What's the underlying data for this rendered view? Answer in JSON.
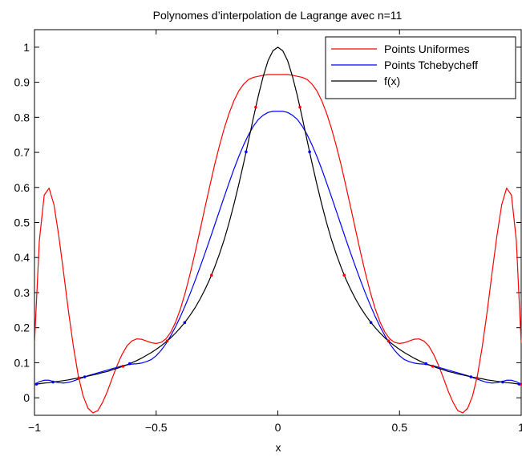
{
  "chart_data": {
    "type": "line",
    "title": "Polynomes d’interpolation de Lagrange avec n=11",
    "xlabel": "x",
    "ylabel": "",
    "xlim": [
      -1,
      1
    ],
    "ylim": [
      -0.05,
      1.05
    ],
    "xticks": [
      -1,
      -0.5,
      0,
      0.5,
      1
    ],
    "xtick_labels": [
      "−1",
      "−0.5",
      "0",
      "0.5",
      "1"
    ],
    "yticks": [
      0,
      0.1,
      0.2,
      0.3,
      0.4,
      0.5,
      0.6,
      0.7,
      0.8,
      0.9,
      1
    ],
    "ytick_labels": [
      "0",
      "0.1",
      "0.2",
      "0.3",
      "0.4",
      "0.5",
      "0.6",
      "0.7",
      "0.8",
      "0.9",
      "1"
    ],
    "grid": false,
    "legend_position": "top-right",
    "series": [
      {
        "name": "Points Uniformes",
        "color": "#ff0000",
        "x": [
          -1,
          -0.98,
          -0.96,
          -0.94,
          -0.92,
          -0.9,
          -0.88,
          -0.86,
          -0.84,
          -0.82,
          -0.8,
          -0.78,
          -0.76,
          -0.74,
          -0.72,
          -0.7,
          -0.68,
          -0.66,
          -0.64,
          -0.62,
          -0.6,
          -0.58,
          -0.56,
          -0.54,
          -0.52,
          -0.5,
          -0.48,
          -0.46,
          -0.44,
          -0.42,
          -0.4,
          -0.38,
          -0.36,
          -0.34,
          -0.32,
          -0.3,
          -0.28,
          -0.26,
          -0.24,
          -0.22,
          -0.2,
          -0.18,
          -0.16,
          -0.14,
          -0.12,
          -0.1,
          -0.08,
          -0.06,
          -0.04,
          -0.02,
          0,
          0.02,
          0.04,
          0.06,
          0.08,
          0.1,
          0.12,
          0.14,
          0.16,
          0.18,
          0.2,
          0.22,
          0.24,
          0.26,
          0.28,
          0.3,
          0.32,
          0.34,
          0.36,
          0.38,
          0.4,
          0.42,
          0.44,
          0.46,
          0.48,
          0.5,
          0.52,
          0.54,
          0.56,
          0.58,
          0.6,
          0.62,
          0.64,
          0.66,
          0.68,
          0.7,
          0.72,
          0.74,
          0.76,
          0.78,
          0.8,
          0.82,
          0.84,
          0.86,
          0.88,
          0.9,
          0.92,
          0.94,
          0.96,
          0.98,
          1
        ],
        "y": [
          0.156,
          0.448,
          0.578,
          0.598,
          0.551,
          0.461,
          0.355,
          0.245,
          0.146,
          0.063,
          0.005,
          -0.03,
          -0.043,
          -0.037,
          -0.013,
          0.019,
          0.057,
          0.093,
          0.124,
          0.148,
          0.162,
          0.168,
          0.167,
          0.162,
          0.157,
          0.155,
          0.158,
          0.168,
          0.187,
          0.216,
          0.254,
          0.301,
          0.355,
          0.414,
          0.477,
          0.541,
          0.603,
          0.664,
          0.719,
          0.769,
          0.812,
          0.848,
          0.876,
          0.895,
          0.908,
          0.914,
          0.917,
          0.92,
          0.922,
          0.922,
          0.922,
          0.922,
          0.922,
          0.92,
          0.917,
          0.914,
          0.908,
          0.895,
          0.876,
          0.848,
          0.812,
          0.769,
          0.719,
          0.664,
          0.603,
          0.541,
          0.477,
          0.414,
          0.355,
          0.301,
          0.254,
          0.216,
          0.187,
          0.168,
          0.158,
          0.155,
          0.157,
          0.162,
          0.167,
          0.168,
          0.162,
          0.148,
          0.124,
          0.093,
          0.057,
          0.019,
          -0.013,
          -0.037,
          -0.043,
          -0.03,
          0.005,
          0.063,
          0.146,
          0.245,
          0.355,
          0.461,
          0.551,
          0.598,
          0.578,
          0.448,
          0.156
        ]
      },
      {
        "name": "Points Tchebycheff",
        "color": "#0000ff",
        "x": [
          -1,
          -0.98,
          -0.96,
          -0.94,
          -0.92,
          -0.9,
          -0.88,
          -0.86,
          -0.84,
          -0.82,
          -0.8,
          -0.78,
          -0.76,
          -0.74,
          -0.72,
          -0.7,
          -0.68,
          -0.66,
          -0.64,
          -0.62,
          -0.6,
          -0.58,
          -0.56,
          -0.54,
          -0.52,
          -0.5,
          -0.48,
          -0.46,
          -0.44,
          -0.42,
          -0.4,
          -0.38,
          -0.36,
          -0.34,
          -0.32,
          -0.3,
          -0.28,
          -0.26,
          -0.24,
          -0.22,
          -0.2,
          -0.18,
          -0.16,
          -0.14,
          -0.12,
          -0.1,
          -0.08,
          -0.06,
          -0.04,
          -0.02,
          0,
          0.02,
          0.04,
          0.06,
          0.08,
          0.1,
          0.12,
          0.14,
          0.16,
          0.18,
          0.2,
          0.22,
          0.24,
          0.26,
          0.28,
          0.3,
          0.32,
          0.34,
          0.36,
          0.38,
          0.4,
          0.42,
          0.44,
          0.46,
          0.48,
          0.5,
          0.52,
          0.54,
          0.56,
          0.58,
          0.6,
          0.62,
          0.64,
          0.66,
          0.68,
          0.7,
          0.72,
          0.74,
          0.76,
          0.78,
          0.8,
          0.82,
          0.84,
          0.86,
          0.88,
          0.9,
          0.92,
          0.94,
          0.96,
          0.98,
          1
        ],
        "y": [
          0.038,
          0.046,
          0.05,
          0.05,
          0.046,
          0.043,
          0.042,
          0.044,
          0.048,
          0.053,
          0.058,
          0.063,
          0.067,
          0.071,
          0.075,
          0.079,
          0.083,
          0.087,
          0.091,
          0.094,
          0.096,
          0.097,
          0.099,
          0.103,
          0.109,
          0.12,
          0.135,
          0.154,
          0.177,
          0.203,
          0.232,
          0.264,
          0.298,
          0.334,
          0.372,
          0.411,
          0.451,
          0.492,
          0.533,
          0.574,
          0.614,
          0.653,
          0.689,
          0.722,
          0.751,
          0.775,
          0.794,
          0.806,
          0.814,
          0.817,
          0.817,
          0.817,
          0.814,
          0.806,
          0.794,
          0.775,
          0.751,
          0.722,
          0.689,
          0.653,
          0.614,
          0.574,
          0.533,
          0.492,
          0.451,
          0.411,
          0.372,
          0.334,
          0.298,
          0.264,
          0.232,
          0.203,
          0.177,
          0.154,
          0.135,
          0.12,
          0.109,
          0.103,
          0.099,
          0.097,
          0.096,
          0.094,
          0.091,
          0.087,
          0.083,
          0.079,
          0.075,
          0.071,
          0.067,
          0.063,
          0.058,
          0.053,
          0.048,
          0.044,
          0.042,
          0.043,
          0.046,
          0.05,
          0.05,
          0.046,
          0.038
        ]
      },
      {
        "name": "f(x)",
        "color": "#000000",
        "x": [
          -1,
          -0.98,
          -0.96,
          -0.94,
          -0.92,
          -0.9,
          -0.88,
          -0.86,
          -0.84,
          -0.82,
          -0.8,
          -0.78,
          -0.76,
          -0.74,
          -0.72,
          -0.7,
          -0.68,
          -0.66,
          -0.64,
          -0.62,
          -0.6,
          -0.58,
          -0.56,
          -0.54,
          -0.52,
          -0.5,
          -0.48,
          -0.46,
          -0.44,
          -0.42,
          -0.4,
          -0.38,
          -0.36,
          -0.34,
          -0.32,
          -0.3,
          -0.28,
          -0.26,
          -0.24,
          -0.22,
          -0.2,
          -0.18,
          -0.16,
          -0.14,
          -0.12,
          -0.1,
          -0.08,
          -0.06,
          -0.04,
          -0.02,
          0,
          0.02,
          0.04,
          0.06,
          0.08,
          0.1,
          0.12,
          0.14,
          0.16,
          0.18,
          0.2,
          0.22,
          0.24,
          0.26,
          0.28,
          0.3,
          0.32,
          0.34,
          0.36,
          0.38,
          0.4,
          0.42,
          0.44,
          0.46,
          0.48,
          0.5,
          0.52,
          0.54,
          0.56,
          0.58,
          0.6,
          0.62,
          0.64,
          0.66,
          0.68,
          0.7,
          0.72,
          0.74,
          0.76,
          0.78,
          0.8,
          0.82,
          0.84,
          0.86,
          0.88,
          0.9,
          0.92,
          0.94,
          0.96,
          0.98,
          1
        ],
        "y": [
          0.038,
          0.04,
          0.042,
          0.043,
          0.045,
          0.047,
          0.049,
          0.051,
          0.054,
          0.056,
          0.059,
          0.062,
          0.065,
          0.068,
          0.072,
          0.075,
          0.08,
          0.084,
          0.089,
          0.094,
          0.1,
          0.106,
          0.113,
          0.121,
          0.129,
          0.138,
          0.148,
          0.159,
          0.171,
          0.185,
          0.2,
          0.217,
          0.236,
          0.257,
          0.281,
          0.308,
          0.338,
          0.372,
          0.41,
          0.452,
          0.5,
          0.553,
          0.61,
          0.671,
          0.735,
          0.8,
          0.862,
          0.917,
          0.962,
          0.99,
          1,
          0.99,
          0.962,
          0.917,
          0.862,
          0.8,
          0.735,
          0.671,
          0.61,
          0.553,
          0.5,
          0.452,
          0.41,
          0.372,
          0.338,
          0.308,
          0.281,
          0.257,
          0.236,
          0.217,
          0.2,
          0.185,
          0.171,
          0.159,
          0.148,
          0.138,
          0.129,
          0.121,
          0.113,
          0.106,
          0.1,
          0.094,
          0.089,
          0.084,
          0.08,
          0.075,
          0.072,
          0.068,
          0.065,
          0.062,
          0.059,
          0.056,
          0.054,
          0.051,
          0.049,
          0.047,
          0.045,
          0.043,
          0.042,
          0.04,
          0.038
        ]
      }
    ],
    "markers": [
      {
        "series": "Points Uniformes",
        "color": "#ff0000",
        "x": [
          -1,
          -0.8182,
          -0.6364,
          -0.4545,
          -0.2727,
          -0.0909,
          0.0909,
          0.2727,
          0.4545,
          0.6364,
          0.8182,
          1
        ],
        "y": [
          0.0385,
          0.0564,
          0.0899,
          0.1622,
          0.3497,
          0.8288,
          0.8288,
          0.3497,
          0.1622,
          0.0899,
          0.0564,
          0.0385
        ]
      },
      {
        "series": "Points Tchebycheff",
        "color": "#0000ff",
        "x": [
          -0.9914,
          -0.9239,
          -0.7934,
          -0.6088,
          -0.3827,
          -0.1305,
          0.1305,
          0.3827,
          0.6088,
          0.7934,
          0.9239,
          0.9914
        ],
        "y": [
          0.0391,
          0.0448,
          0.0597,
          0.0974,
          0.2145,
          0.7014,
          0.7014,
          0.2145,
          0.0974,
          0.0597,
          0.0448,
          0.0391
        ]
      }
    ]
  }
}
